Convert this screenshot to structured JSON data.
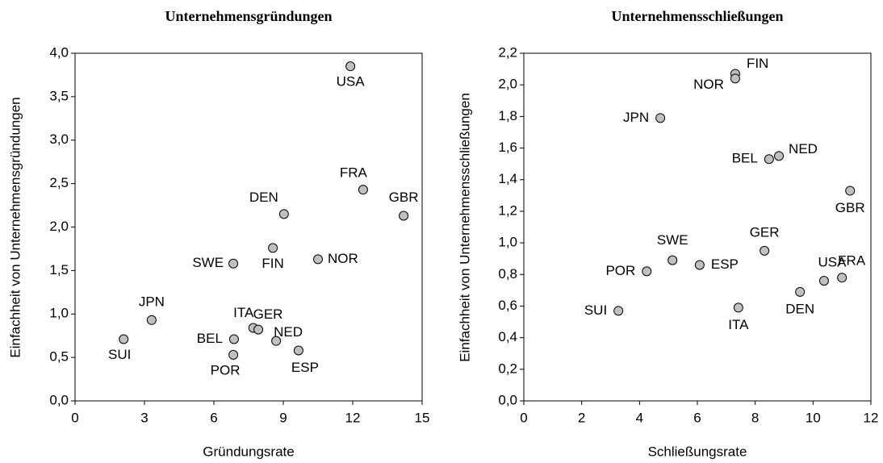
{
  "chart_data": [
    {
      "type": "scatter",
      "title": "Unternehmensgründungen",
      "x_label": "Gründungsrate",
      "y_label": "Einfachheit von Unternehmensgründungen",
      "labels": [
        "USA",
        "FRA",
        "GBR",
        "DEN",
        "FIN",
        "NOR",
        "SWE",
        "JPN",
        "SUI",
        "ITA",
        "GER",
        "BEL",
        "NED",
        "POR",
        "ESP"
      ],
      "x": [
        11.9,
        12.45,
        14.2,
        9.03,
        8.55,
        10.5,
        6.84,
        3.31,
        2.1,
        7.7,
        7.92,
        6.87,
        8.69,
        6.84,
        9.66
      ],
      "y": [
        3.85,
        2.43,
        2.13,
        2.15,
        1.76,
        1.63,
        1.58,
        0.93,
        0.71,
        0.84,
        0.82,
        0.71,
        0.69,
        0.53,
        0.58
      ],
      "color": "#c0c0c0",
      "xlim": [
        0,
        15
      ],
      "xticks": [
        0,
        3,
        6,
        9,
        12,
        15
      ],
      "ylim": [
        0,
        4
      ],
      "yticks": [
        {
          "value": 0,
          "label": "0,0"
        },
        {
          "value": 0.5,
          "label": "0,5"
        },
        {
          "value": 1,
          "label": "1,0"
        },
        {
          "value": 1.5,
          "label": "1,5"
        },
        {
          "value": 2,
          "label": "2,0"
        },
        {
          "value": 2.5,
          "label": "2,5"
        },
        {
          "value": 3,
          "label": "3,0"
        },
        {
          "value": 3.5,
          "label": "3,5"
        },
        {
          "value": 4,
          "label": "4,0"
        }
      ]
    },
    {
      "type": "scatter",
      "title": "Unternehmensschließungen",
      "x_label": "Schließungsrate",
      "y_label": "Einfachheit von Unternehmensschließungen",
      "labels": [
        "FIN",
        "NOR",
        "JPN",
        "BEL",
        "NED",
        "GBR",
        "GER",
        "SWE",
        "ESP",
        "POR",
        "SUI",
        "ITA",
        "DEN",
        "USA",
        "FRA"
      ],
      "x": [
        7.31,
        7.31,
        4.72,
        8.48,
        8.82,
        11.28,
        8.32,
        5.14,
        6.08,
        4.25,
        3.27,
        7.42,
        9.55,
        10.38,
        11.0
      ],
      "y": [
        2.07,
        2.04,
        1.79,
        1.53,
        1.55,
        1.33,
        0.95,
        0.89,
        0.86,
        0.82,
        0.57,
        0.59,
        0.69,
        0.76,
        0.78
      ],
      "color": "#c0c0c0",
      "xlim": [
        0,
        12
      ],
      "xticks": [
        0,
        2,
        4,
        6,
        8,
        10,
        12
      ],
      "ylim": [
        0,
        2.2
      ],
      "yticks": [
        {
          "value": 0,
          "label": "0,0"
        },
        {
          "value": 0.2,
          "label": "0,2"
        },
        {
          "value": 0.4,
          "label": "0,4"
        },
        {
          "value": 0.6,
          "label": "0,6"
        },
        {
          "value": 0.8,
          "label": "0,8"
        },
        {
          "value": 1,
          "label": "1,0"
        },
        {
          "value": 1.2,
          "label": "1,2"
        },
        {
          "value": 1.4,
          "label": "1,4"
        },
        {
          "value": 1.6,
          "label": "1,6"
        },
        {
          "value": 1.8,
          "label": "1,8"
        },
        {
          "value": 2,
          "label": "2,0"
        },
        {
          "value": 2.2,
          "label": "2,2"
        }
      ]
    }
  ]
}
